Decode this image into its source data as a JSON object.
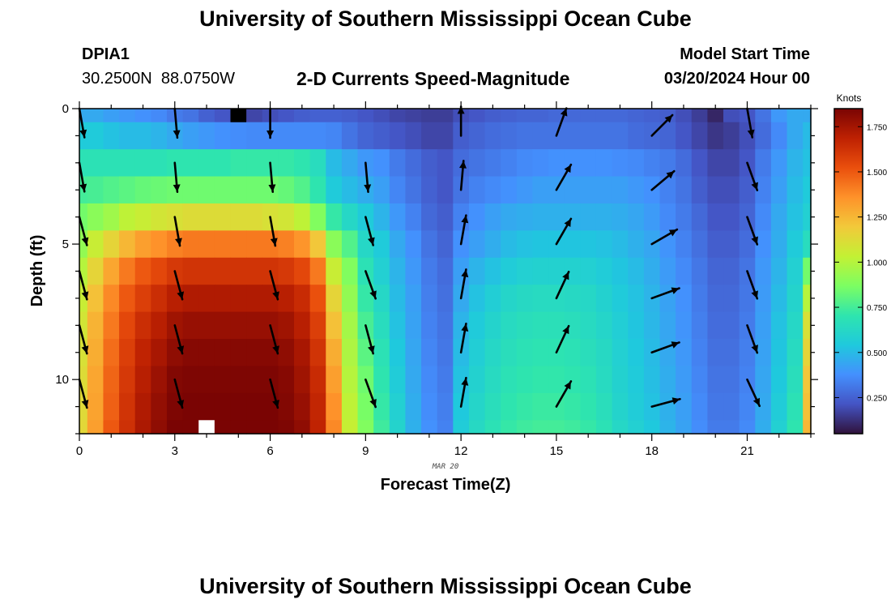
{
  "header": {
    "title": "University of Southern Mississippi Ocean Cube",
    "station_id": "DPIA1",
    "station_coords": "30.2500N  88.0750W",
    "subtitle": "2-D Currents Speed-Magnitude",
    "model_start_label": "Model Start Time",
    "model_start_value": "03/20/2024 Hour 00",
    "second_title": "University of Southern Mississippi Ocean Cube"
  },
  "chart_data": {
    "type": "heatmap",
    "title": "2-D Currents Speed-Magnitude",
    "xlabel": "Forecast Time(Z)",
    "ylabel": "Depth (ft)",
    "x_date_label": "MAR 20",
    "colorbar_label": "Knots",
    "xlim": [
      0,
      23
    ],
    "ylim": [
      0,
      12
    ],
    "x_ticks": [
      0,
      3,
      6,
      9,
      12,
      15,
      18,
      21
    ],
    "y_ticks": [
      0,
      5,
      10
    ],
    "colorbar_ticks": [
      0.25,
      0.5,
      0.75,
      1.0,
      1.25,
      1.5,
      1.75
    ],
    "colorbar_tick_labels": [
      "0.250",
      "0.500",
      "0.750",
      "1.000",
      "1.250",
      "1.500",
      "1.750"
    ],
    "colorbar_range": [
      0.05,
      1.85
    ],
    "hours": [
      0,
      0.5,
      1,
      1.5,
      2,
      2.5,
      3,
      3.5,
      4,
      4.5,
      5,
      5.5,
      6,
      6.5,
      7,
      7.5,
      8,
      8.5,
      9,
      9.5,
      10,
      10.5,
      11,
      11.5,
      12,
      12.5,
      13,
      13.5,
      14,
      14.5,
      15,
      15.5,
      16,
      16.5,
      17,
      17.5,
      18,
      18.5,
      19,
      19.5,
      20,
      20.5,
      21,
      21.5,
      22,
      22.5,
      23
    ],
    "depths_ft": [
      0,
      1,
      2,
      3,
      4,
      5,
      6,
      7,
      8,
      9,
      10,
      11,
      12
    ],
    "speed_knots_by_depth": [
      [
        0.45,
        0.45,
        0.42,
        0.4,
        0.38,
        0.36,
        0.32,
        0.3,
        0.25,
        0.22,
        0.15,
        0.18,
        0.2,
        0.22,
        0.24,
        0.25,
        0.25,
        0.24,
        0.22,
        0.2,
        0.18,
        0.17,
        0.16,
        0.16,
        0.2,
        0.22,
        0.24,
        0.25,
        0.26,
        0.26,
        0.27,
        0.27,
        0.27,
        0.27,
        0.27,
        0.26,
        0.25,
        0.24,
        0.2,
        0.16,
        0.1,
        0.2,
        0.22,
        0.3,
        0.4,
        0.45,
        0.45
      ],
      [
        0.55,
        0.55,
        0.52,
        0.5,
        0.5,
        0.48,
        0.45,
        0.42,
        0.4,
        0.38,
        0.37,
        0.36,
        0.36,
        0.36,
        0.36,
        0.36,
        0.35,
        0.3,
        0.26,
        0.24,
        0.22,
        0.2,
        0.18,
        0.18,
        0.24,
        0.26,
        0.28,
        0.29,
        0.3,
        0.3,
        0.3,
        0.3,
        0.3,
        0.3,
        0.3,
        0.28,
        0.27,
        0.26,
        0.22,
        0.18,
        0.14,
        0.16,
        0.2,
        0.28,
        0.36,
        0.45,
        0.5
      ],
      [
        0.68,
        0.68,
        0.68,
        0.68,
        0.68,
        0.68,
        0.7,
        0.7,
        0.7,
        0.7,
        0.72,
        0.72,
        0.72,
        0.72,
        0.7,
        0.65,
        0.5,
        0.45,
        0.4,
        0.38,
        0.32,
        0.28,
        0.24,
        0.22,
        0.28,
        0.3,
        0.32,
        0.34,
        0.36,
        0.37,
        0.38,
        0.38,
        0.38,
        0.38,
        0.37,
        0.36,
        0.34,
        0.32,
        0.28,
        0.22,
        0.18,
        0.18,
        0.22,
        0.32,
        0.4,
        0.48,
        0.52
      ],
      [
        0.75,
        0.76,
        0.78,
        0.8,
        0.82,
        0.83,
        0.84,
        0.84,
        0.84,
        0.84,
        0.84,
        0.84,
        0.84,
        0.82,
        0.78,
        0.7,
        0.55,
        0.5,
        0.46,
        0.42,
        0.35,
        0.3,
        0.25,
        0.22,
        0.3,
        0.34,
        0.36,
        0.38,
        0.4,
        0.42,
        0.42,
        0.42,
        0.42,
        0.42,
        0.42,
        0.4,
        0.38,
        0.34,
        0.3,
        0.24,
        0.2,
        0.2,
        0.24,
        0.34,
        0.42,
        0.5,
        0.55
      ],
      [
        0.85,
        0.9,
        0.95,
        1.02,
        1.05,
        1.08,
        1.1,
        1.12,
        1.12,
        1.12,
        1.12,
        1.12,
        1.1,
        1.08,
        1.02,
        0.88,
        0.72,
        0.62,
        0.55,
        0.48,
        0.4,
        0.34,
        0.27,
        0.24,
        0.34,
        0.38,
        0.42,
        0.45,
        0.46,
        0.47,
        0.47,
        0.47,
        0.47,
        0.47,
        0.46,
        0.44,
        0.41,
        0.36,
        0.32,
        0.27,
        0.22,
        0.22,
        0.26,
        0.36,
        0.45,
        0.52,
        0.58
      ],
      [
        0.92,
        1.05,
        1.15,
        1.25,
        1.32,
        1.36,
        1.4,
        1.42,
        1.42,
        1.42,
        1.42,
        1.42,
        1.42,
        1.4,
        1.35,
        1.2,
        0.9,
        0.78,
        0.62,
        0.55,
        0.45,
        0.38,
        0.3,
        0.26,
        0.38,
        0.42,
        0.46,
        0.5,
        0.52,
        0.53,
        0.53,
        0.53,
        0.53,
        0.52,
        0.5,
        0.47,
        0.44,
        0.39,
        0.34,
        0.29,
        0.24,
        0.24,
        0.28,
        0.38,
        0.46,
        0.55,
        0.65
      ],
      [
        1.0,
        1.15,
        1.3,
        1.42,
        1.5,
        1.55,
        1.6,
        1.62,
        1.62,
        1.62,
        1.62,
        1.62,
        1.62,
        1.6,
        1.55,
        1.42,
        1.05,
        0.88,
        0.68,
        0.58,
        0.48,
        0.4,
        0.32,
        0.28,
        0.42,
        0.48,
        0.52,
        0.56,
        0.58,
        0.59,
        0.59,
        0.59,
        0.58,
        0.56,
        0.53,
        0.5,
        0.46,
        0.41,
        0.36,
        0.31,
        0.26,
        0.26,
        0.3,
        0.4,
        0.48,
        0.58,
        0.85
      ],
      [
        1.05,
        1.22,
        1.38,
        1.5,
        1.58,
        1.64,
        1.7,
        1.72,
        1.72,
        1.72,
        1.72,
        1.72,
        1.72,
        1.7,
        1.65,
        1.52,
        1.15,
        0.92,
        0.72,
        0.62,
        0.5,
        0.42,
        0.33,
        0.29,
        0.45,
        0.52,
        0.57,
        0.61,
        0.63,
        0.64,
        0.64,
        0.63,
        0.62,
        0.59,
        0.55,
        0.52,
        0.48,
        0.43,
        0.38,
        0.32,
        0.27,
        0.27,
        0.31,
        0.41,
        0.5,
        0.6,
        1.0
      ],
      [
        1.08,
        1.26,
        1.42,
        1.55,
        1.64,
        1.7,
        1.76,
        1.78,
        1.78,
        1.78,
        1.78,
        1.78,
        1.78,
        1.76,
        1.7,
        1.58,
        1.22,
        0.96,
        0.76,
        0.65,
        0.52,
        0.43,
        0.34,
        0.3,
        0.48,
        0.55,
        0.6,
        0.64,
        0.66,
        0.67,
        0.67,
        0.66,
        0.64,
        0.61,
        0.57,
        0.53,
        0.49,
        0.44,
        0.39,
        0.33,
        0.28,
        0.28,
        0.32,
        0.42,
        0.52,
        0.62,
        1.1
      ],
      [
        1.1,
        1.28,
        1.45,
        1.58,
        1.68,
        1.74,
        1.8,
        1.82,
        1.82,
        1.82,
        1.82,
        1.82,
        1.82,
        1.8,
        1.74,
        1.62,
        1.28,
        0.98,
        0.8,
        0.68,
        0.54,
        0.44,
        0.35,
        0.31,
        0.5,
        0.57,
        0.62,
        0.66,
        0.68,
        0.69,
        0.69,
        0.68,
        0.66,
        0.63,
        0.58,
        0.54,
        0.5,
        0.45,
        0.4,
        0.34,
        0.29,
        0.29,
        0.33,
        0.43,
        0.53,
        0.64,
        1.15
      ],
      [
        1.12,
        1.3,
        1.47,
        1.6,
        1.7,
        1.77,
        1.83,
        1.84,
        1.84,
        1.84,
        1.84,
        1.84,
        1.84,
        1.82,
        1.76,
        1.65,
        1.32,
        1.0,
        0.84,
        0.7,
        0.56,
        0.45,
        0.36,
        0.32,
        0.52,
        0.59,
        0.64,
        0.68,
        0.7,
        0.71,
        0.71,
        0.7,
        0.68,
        0.64,
        0.59,
        0.55,
        0.51,
        0.46,
        0.41,
        0.35,
        0.3,
        0.3,
        0.34,
        0.44,
        0.54,
        0.66,
        1.2
      ],
      [
        1.13,
        1.31,
        1.48,
        1.62,
        1.72,
        1.79,
        1.84,
        1.85,
        1.85,
        1.85,
        1.85,
        1.85,
        1.85,
        1.83,
        1.78,
        1.67,
        1.36,
        1.02,
        0.86,
        0.72,
        0.58,
        0.46,
        0.37,
        0.33,
        0.54,
        0.61,
        0.66,
        0.7,
        0.72,
        0.73,
        0.73,
        0.72,
        0.7,
        0.66,
        0.6,
        0.56,
        0.52,
        0.47,
        0.42,
        0.36,
        0.31,
        0.31,
        0.35,
        0.45,
        0.56,
        0.68,
        1.22
      ],
      [
        1.14,
        1.32,
        1.5,
        1.63,
        1.73,
        1.8,
        1.85,
        1.85,
        1.85,
        1.85,
        1.85,
        1.85,
        1.85,
        1.84,
        1.8,
        1.68,
        1.38,
        1.04,
        0.88,
        0.74,
        0.6,
        0.47,
        0.38,
        0.34,
        0.56,
        0.63,
        0.68,
        0.72,
        0.74,
        0.75,
        0.75,
        0.74,
        0.72,
        0.68,
        0.62,
        0.58,
        0.54,
        0.48,
        0.43,
        0.37,
        0.32,
        0.32,
        0.36,
        0.46,
        0.58,
        0.7,
        1.25
      ]
    ],
    "missing_cells": [
      {
        "hour": 5,
        "depth_ft": 0,
        "fill": "#000000"
      },
      {
        "hour": 4,
        "depth_ft": 12,
        "fill": "#ffffff"
      }
    ],
    "vector_hours": [
      0,
      3,
      6,
      9,
      12,
      15,
      18,
      21
    ],
    "vector_depths_ft": [
      0,
      1,
      2,
      3,
      4,
      5,
      6,
      7,
      8,
      9,
      10,
      11,
      12
    ],
    "vector_direction_deg": [
      [
        170,
        175,
        180,
        null,
        null,
        null,
        null,
        170
      ],
      [
        null,
        null,
        null,
        null,
        0,
        20,
        45,
        null
      ],
      [
        170,
        175,
        175,
        175,
        null,
        null,
        null,
        160
      ],
      [
        null,
        null,
        null,
        null,
        5,
        30,
        50,
        null
      ],
      [
        165,
        170,
        170,
        165,
        null,
        null,
        null,
        160
      ],
      [
        null,
        null,
        null,
        null,
        10,
        30,
        60,
        null
      ],
      [
        165,
        165,
        165,
        160,
        null,
        null,
        null,
        160
      ],
      [
        null,
        null,
        null,
        null,
        10,
        25,
        70,
        null
      ],
      [
        165,
        165,
        165,
        165,
        null,
        null,
        null,
        160
      ],
      [
        null,
        null,
        null,
        null,
        10,
        25,
        70,
        null
      ],
      [
        165,
        165,
        165,
        160,
        null,
        null,
        null,
        155
      ],
      [
        null,
        null,
        null,
        null,
        10,
        30,
        75,
        null
      ],
      [
        null,
        null,
        null,
        null,
        null,
        null,
        null,
        null
      ]
    ],
    "colormap": [
      "#30123b",
      "#4454c4",
      "#4490fe",
      "#1fc9dd",
      "#2ee5ae",
      "#7cfe62",
      "#c3f134",
      "#f2c93a",
      "#fe922a",
      "#ea4f0d",
      "#be2102",
      "#7a0403"
    ]
  }
}
